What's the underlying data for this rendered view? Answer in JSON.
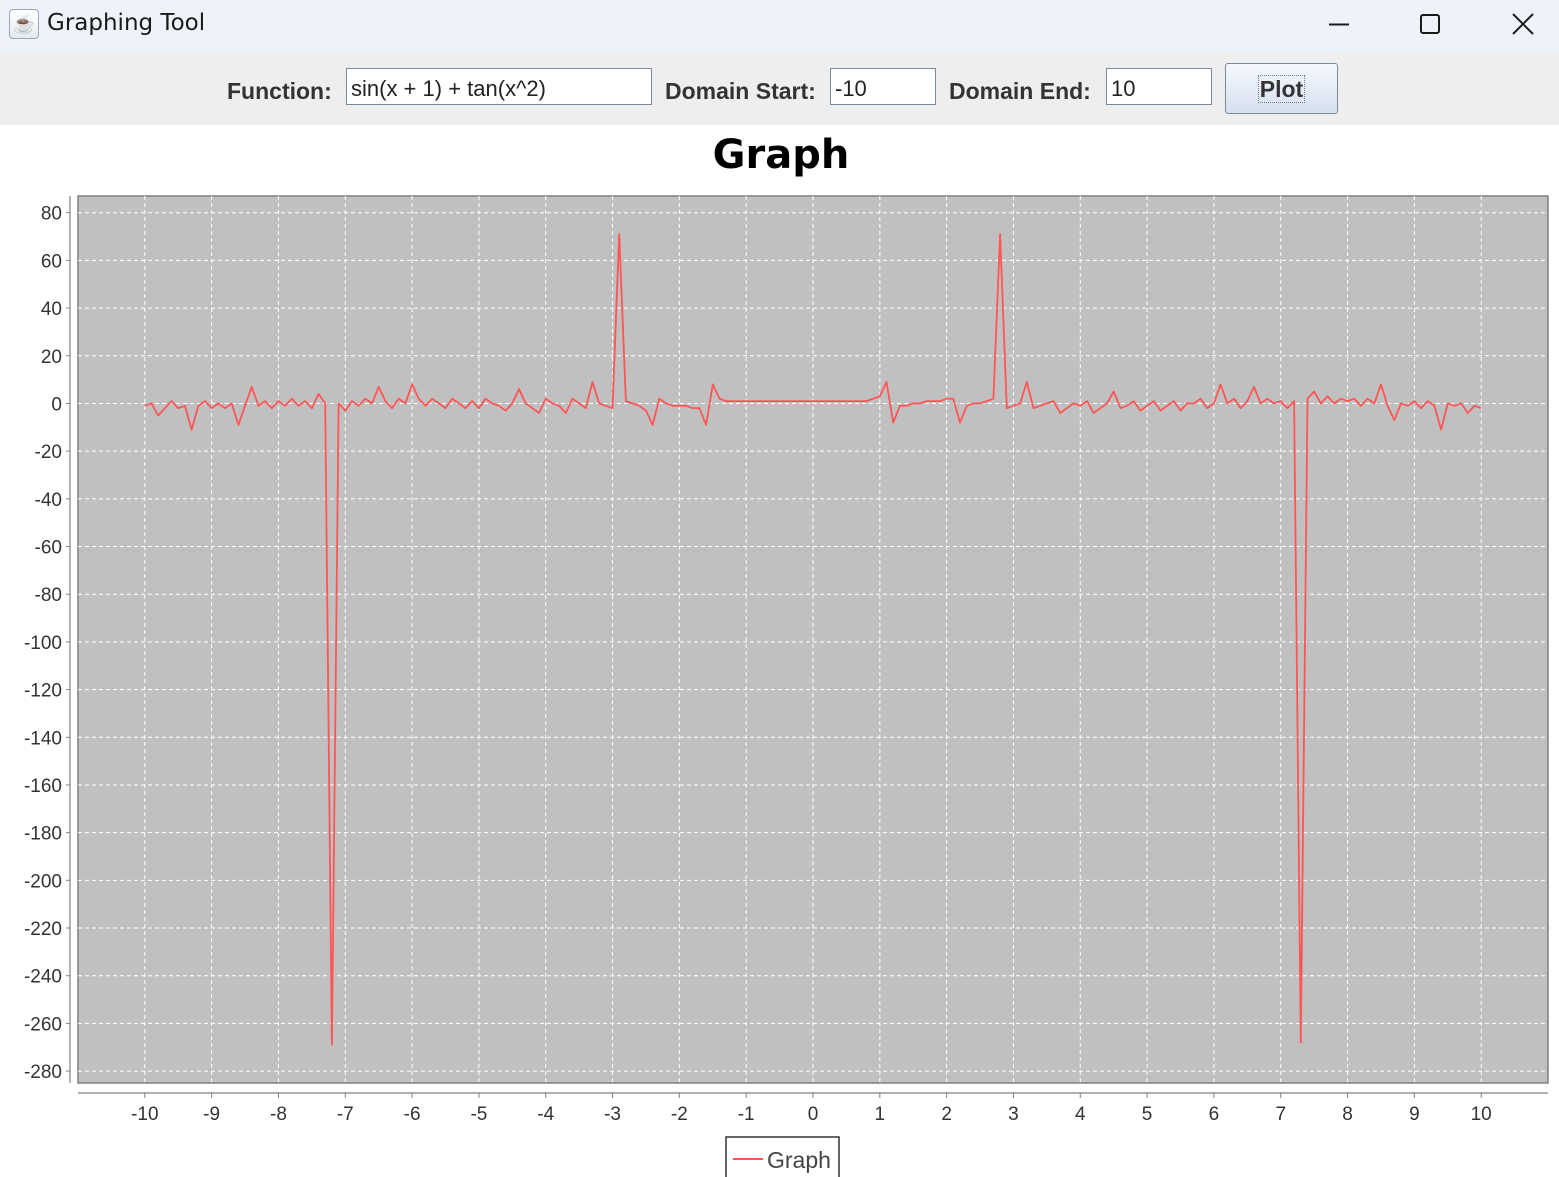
{
  "window": {
    "title": "Graphing Tool",
    "icon": "java-cup-icon",
    "controls": [
      "minimize-icon",
      "maximize-icon",
      "close-icon"
    ]
  },
  "toolbar": {
    "function_label": "Function:",
    "function_value": "sin(x + 1) + tan(x^2)",
    "domain_start_label": "Domain Start:",
    "domain_start_value": "-10",
    "domain_end_label": "Domain End:",
    "domain_end_value": "10",
    "plot_label": "Plot"
  },
  "chart_data": {
    "type": "line",
    "title": "Graph",
    "xlabel": "",
    "ylabel": "",
    "xlim": [
      -11,
      11
    ],
    "ylim": [
      -285,
      87
    ],
    "x_ticks": [
      -10,
      -9,
      -8,
      -7,
      -6,
      -5,
      -4,
      -3,
      -2,
      -1,
      0,
      1,
      2,
      3,
      4,
      5,
      6,
      7,
      8,
      9,
      10
    ],
    "y_ticks": [
      80,
      60,
      40,
      20,
      0,
      -20,
      -40,
      -60,
      -80,
      -100,
      -120,
      -140,
      -160,
      -180,
      -200,
      -220,
      -240,
      -260,
      -280
    ],
    "grid": true,
    "legend": "bottom-center",
    "plot_background": "#c0c0c0",
    "series": [
      {
        "name": "Graph",
        "color": "#ff5555",
        "x": [
          -10.0,
          -9.9,
          -9.8,
          -9.7,
          -9.6,
          -9.5,
          -9.4,
          -9.3,
          -9.2,
          -9.1,
          -9.0,
          -8.9,
          -8.8,
          -8.7,
          -8.6,
          -8.5,
          -8.4,
          -8.3,
          -8.2,
          -8.1,
          -8.0,
          -7.9,
          -7.8,
          -7.7,
          -7.6,
          -7.5,
          -7.4,
          -7.3,
          -7.2,
          -7.1,
          -7.0,
          -6.9,
          -6.8,
          -6.7,
          -6.6,
          -6.5,
          -6.4,
          -6.3,
          -6.2,
          -6.1,
          -6.0,
          -5.9,
          -5.8,
          -5.7,
          -5.6,
          -5.5,
          -5.4,
          -5.3,
          -5.2,
          -5.1,
          -5.0,
          -4.9,
          -4.8,
          -4.7,
          -4.6,
          -4.5,
          -4.4,
          -4.3,
          -4.2,
          -4.1,
          -4.0,
          -3.9,
          -3.8,
          -3.7,
          -3.6,
          -3.5,
          -3.4,
          -3.3,
          -3.2,
          -3.1,
          -3.0,
          -2.9,
          -2.8,
          -2.7,
          -2.6,
          -2.5,
          -2.4,
          -2.3,
          -2.2,
          -2.1,
          -2.0,
          -1.9,
          -1.8,
          -1.7,
          -1.6,
          -1.5,
          -1.4,
          -1.3,
          -1.2,
          -1.1,
          -1.0,
          -0.9,
          -0.8,
          -0.7,
          -0.6,
          -0.5,
          -0.4,
          -0.3,
          -0.2,
          -0.1,
          0.0,
          0.1,
          0.2,
          0.3,
          0.4,
          0.5,
          0.6,
          0.7,
          0.8,
          0.9,
          1.0,
          1.1,
          1.2,
          1.3,
          1.4,
          1.5,
          1.6,
          1.7,
          1.8,
          1.9,
          2.0,
          2.1,
          2.2,
          2.3,
          2.4,
          2.5,
          2.6,
          2.7,
          2.8,
          2.9,
          3.0,
          3.1,
          3.2,
          3.3,
          3.4,
          3.5,
          3.6,
          3.7,
          3.8,
          3.9,
          4.0,
          4.1,
          4.2,
          4.3,
          4.4,
          4.5,
          4.6,
          4.7,
          4.8,
          4.9,
          5.0,
          5.1,
          5.2,
          5.3,
          5.4,
          5.5,
          5.6,
          5.7,
          5.8,
          5.9,
          6.0,
          6.1,
          6.2,
          6.3,
          6.4,
          6.5,
          6.6,
          6.7,
          6.8,
          6.9,
          7.0,
          7.1,
          7.2,
          7.3,
          7.4,
          7.5,
          7.6,
          7.7,
          7.8,
          7.9,
          8.0,
          8.1,
          8.2,
          8.3,
          8.4,
          8.5,
          8.6,
          8.7,
          8.8,
          8.9,
          9.0,
          9.1,
          9.2,
          9.3,
          9.4,
          9.5,
          9.6,
          9.7,
          9.8,
          9.9,
          10.0
        ],
        "y": [
          -1,
          0,
          -5,
          -2,
          1,
          -2,
          -1,
          -11,
          -1,
          1,
          -2,
          0,
          -2,
          0,
          -9,
          -1,
          7,
          -1,
          1,
          -2,
          1,
          -1,
          2,
          -1,
          1,
          -2,
          4,
          0,
          -269,
          0,
          -3,
          1,
          -1,
          2,
          0,
          7,
          1,
          -2,
          2,
          0,
          8,
          2,
          -1,
          2,
          0,
          -2,
          2,
          0,
          -2,
          1,
          -2,
          2,
          0,
          -1,
          -3,
          0,
          6,
          0,
          -2,
          -4,
          2,
          0,
          -1,
          -4,
          2,
          0,
          -2,
          9,
          0,
          -1,
          -2,
          71,
          1,
          0,
          -1,
          -3,
          -9,
          2,
          0,
          -1,
          -1,
          -1,
          -2,
          -2,
          -9,
          8,
          2,
          1,
          1,
          1,
          1,
          1,
          1,
          1,
          1,
          1,
          1,
          1,
          1,
          1,
          1,
          1,
          1,
          1,
          1,
          1,
          1,
          1,
          1,
          2,
          3,
          9,
          -8,
          -1,
          -1,
          0,
          0,
          1,
          1,
          1,
          2,
          2,
          -8,
          -1,
          0,
          0,
          1,
          2,
          71,
          -2,
          -1,
          0,
          9,
          -2,
          -1,
          0,
          1,
          -4,
          -2,
          0,
          -1,
          1,
          -4,
          -2,
          0,
          5,
          -2,
          -1,
          1,
          -3,
          -1,
          1,
          -3,
          -1,
          1,
          -3,
          0,
          0,
          2,
          -2,
          0,
          8,
          0,
          2,
          -2,
          1,
          7,
          0,
          2,
          0,
          1,
          -2,
          1,
          -268,
          2,
          5,
          0,
          3,
          0,
          2,
          1,
          2,
          -1,
          2,
          0,
          8,
          -1,
          -7,
          0,
          -1,
          1,
          -2,
          1,
          -1,
          -11,
          0,
          -1,
          0,
          -4,
          -1,
          -2
        ]
      }
    ]
  }
}
